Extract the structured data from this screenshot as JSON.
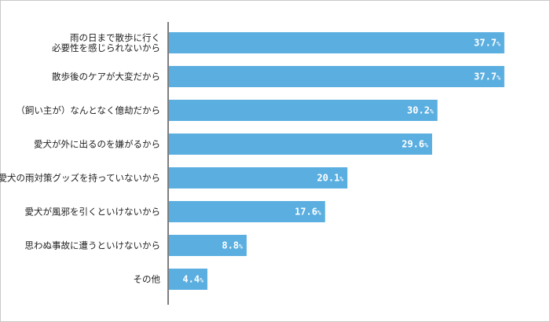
{
  "chart_data": {
    "type": "bar",
    "orientation": "horizontal",
    "categories": [
      [
        "雨の日まで散歩に行く",
        "必要性を感じられないから"
      ],
      [
        "散歩後のケアが大変だから"
      ],
      [
        "（飼い主が）なんとなく億劫だから"
      ],
      [
        "愛犬が外に出るのを嫌がるから"
      ],
      [
        "愛犬の雨対策グッズを持っていないから"
      ],
      [
        "愛犬が風邪を引くといけないから"
      ],
      [
        "思わぬ事故に遭うといけないから"
      ],
      [
        "その他"
      ]
    ],
    "values": [
      37.7,
      37.7,
      30.2,
      29.6,
      20.1,
      17.6,
      8.8,
      4.4
    ],
    "value_labels": [
      "37.7",
      "37.7",
      "30.2",
      "29.6",
      "20.1",
      "17.6",
      "8.8",
      "4.4"
    ],
    "value_unit": "%",
    "xlim": [
      0,
      40
    ],
    "grid": false,
    "legend": "none"
  },
  "colors": {
    "bar": "#5aaee0",
    "axis": "#7f7f7f",
    "label_text": "#222222",
    "value_text": "#ffffff"
  }
}
